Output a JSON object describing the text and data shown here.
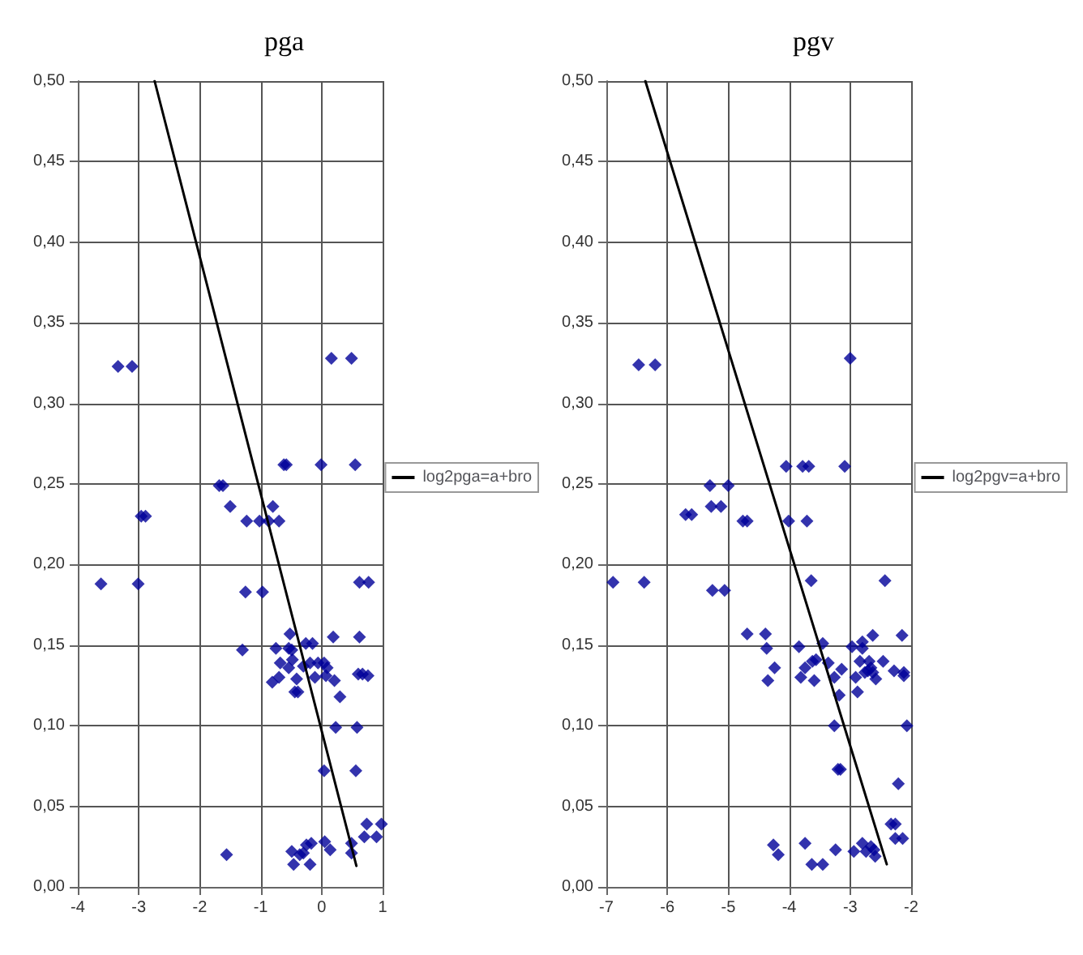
{
  "chart_data": [
    {
      "type": "scatter",
      "title": "pga",
      "legend": "right",
      "grid": true,
      "marker": "diamond",
      "xlim": [
        -4,
        1
      ],
      "xticks": [
        -4,
        -3,
        -2,
        -1,
        0,
        1
      ],
      "ylim": [
        0,
        0.5
      ],
      "yticks": [
        {
          "value": 0,
          "label": "0,00"
        },
        {
          "value": 0.05,
          "label": "0,05"
        },
        {
          "value": 0.1,
          "label": "0,10"
        },
        {
          "value": 0.15,
          "label": "0,15"
        },
        {
          "value": 0.2,
          "label": "0,20"
        },
        {
          "value": 0.25,
          "label": "0,25"
        },
        {
          "value": 0.3,
          "label": "0,30"
        },
        {
          "value": 0.35,
          "label": "0,35"
        },
        {
          "value": 0.4,
          "label": "0,40"
        },
        {
          "value": 0.45,
          "label": "0,45"
        },
        {
          "value": 0.5,
          "label": "0,50"
        }
      ],
      "series": [
        {
          "type": "scatter",
          "color": "#000099",
          "x": [
            -3.34,
            -3.11,
            0.16,
            0.49,
            -0.62,
            -0.58,
            -0.01,
            0.55,
            -1.68,
            -1.62,
            -1.5,
            -0.8,
            -1.23,
            -1.02,
            -0.87,
            -0.7,
            -2.96,
            -2.89,
            -3.62,
            -3.01,
            -1.25,
            -0.97,
            0.62,
            0.77,
            -1.3,
            -0.75,
            -0.52,
            -0.54,
            -0.49,
            -0.68,
            -0.7,
            -0.81,
            -0.54,
            -0.48,
            -0.41,
            -0.44,
            -0.39,
            -0.3,
            -0.26,
            -0.15,
            -0.19,
            -0.11,
            -0.06,
            0.04,
            0.09,
            0.07,
            0.21,
            0.3,
            0.19,
            0.62,
            0.23,
            0.58,
            0.04,
            0.56,
            0.6,
            0.67,
            0.76,
            -1.56,
            -0.49,
            -0.46,
            -0.3,
            -0.25,
            -0.17,
            -0.19,
            -0.36,
            0.05,
            0.14,
            0.49,
            0.49,
            0.7,
            0.9,
            0.74,
            0.98
          ],
          "values": [
            0.323,
            0.323,
            0.328,
            0.328,
            0.262,
            0.262,
            0.262,
            0.262,
            0.249,
            0.249,
            0.236,
            0.236,
            0.227,
            0.227,
            0.227,
            0.227,
            0.23,
            0.23,
            0.188,
            0.188,
            0.183,
            0.183,
            0.189,
            0.189,
            0.147,
            0.148,
            0.157,
            0.148,
            0.147,
            0.139,
            0.13,
            0.127,
            0.136,
            0.141,
            0.129,
            0.121,
            0.121,
            0.137,
            0.151,
            0.151,
            0.139,
            0.13,
            0.139,
            0.139,
            0.136,
            0.131,
            0.128,
            0.118,
            0.155,
            0.155,
            0.099,
            0.099,
            0.072,
            0.072,
            0.132,
            0.132,
            0.131,
            0.02,
            0.022,
            0.014,
            0.021,
            0.026,
            0.027,
            0.014,
            0.02,
            0.028,
            0.023,
            0.027,
            0.021,
            0.031,
            0.031,
            0.039,
            0.039
          ]
        },
        {
          "type": "line",
          "name": "log2pga=a+bro",
          "color": "#000000",
          "marker": "none",
          "x": [
            -2.74,
            0.57
          ],
          "values": [
            0.5,
            0.013
          ]
        }
      ]
    },
    {
      "type": "scatter",
      "title": "pgv",
      "legend": "right",
      "grid": true,
      "marker": "diamond",
      "xlim": [
        -7,
        -2
      ],
      "xticks": [
        -7,
        -6,
        -5,
        -4,
        -3,
        -2
      ],
      "ylim": [
        0,
        0.5
      ],
      "yticks": [
        {
          "value": 0,
          "label": "0,00"
        },
        {
          "value": 0.05,
          "label": "0,05"
        },
        {
          "value": 0.1,
          "label": "0,10"
        },
        {
          "value": 0.15,
          "label": "0,15"
        },
        {
          "value": 0.2,
          "label": "0,20"
        },
        {
          "value": 0.25,
          "label": "0,25"
        },
        {
          "value": 0.3,
          "label": "0,30"
        },
        {
          "value": 0.35,
          "label": "0,35"
        },
        {
          "value": 0.4,
          "label": "0,40"
        },
        {
          "value": 0.45,
          "label": "0,45"
        },
        {
          "value": 0.5,
          "label": "0,50"
        }
      ],
      "series": [
        {
          "type": "scatter",
          "color": "#000099",
          "x": [
            -6.47,
            -6.2,
            -3.0,
            -4.05,
            -3.78,
            -3.68,
            -3.09,
            -5.3,
            -5.0,
            -5.7,
            -5.6,
            -5.28,
            -5.12,
            -4.76,
            -4.69,
            -4.01,
            -3.71,
            -6.89,
            -6.38,
            -5.26,
            -5.06,
            -3.64,
            -2.43,
            -4.69,
            -4.39,
            -4.37,
            -4.24,
            -4.35,
            -3.84,
            -3.81,
            -3.74,
            -3.62,
            -3.56,
            -3.59,
            -3.45,
            -3.36,
            -3.26,
            -3.14,
            -3.18,
            -3.26,
            -3.2,
            -3.16,
            -2.97,
            -2.91,
            -2.88,
            -2.8,
            -2.8,
            -2.84,
            -2.76,
            -2.69,
            -2.66,
            -2.63,
            -2.71,
            -2.63,
            -2.58,
            -2.46,
            -2.28,
            -2.15,
            -2.12,
            -2.12,
            -2.07,
            -2.21,
            -2.33,
            -2.26,
            -2.26,
            -2.14,
            -4.26,
            -4.18,
            -3.74,
            -3.63,
            -3.45,
            -3.24,
            -2.94,
            -2.8,
            -2.74,
            -2.66,
            -2.61,
            -2.59
          ],
          "values": [
            0.324,
            0.324,
            0.328,
            0.261,
            0.261,
            0.261,
            0.261,
            0.249,
            0.249,
            0.231,
            0.231,
            0.236,
            0.236,
            0.227,
            0.227,
            0.227,
            0.227,
            0.189,
            0.189,
            0.184,
            0.184,
            0.19,
            0.19,
            0.157,
            0.157,
            0.148,
            0.136,
            0.128,
            0.149,
            0.13,
            0.136,
            0.14,
            0.141,
            0.128,
            0.151,
            0.139,
            0.13,
            0.135,
            0.119,
            0.1,
            0.073,
            0.073,
            0.149,
            0.13,
            0.121,
            0.152,
            0.148,
            0.14,
            0.133,
            0.14,
            0.136,
            0.133,
            0.134,
            0.156,
            0.129,
            0.14,
            0.134,
            0.156,
            0.133,
            0.131,
            0.1,
            0.064,
            0.039,
            0.039,
            0.03,
            0.03,
            0.026,
            0.02,
            0.027,
            0.014,
            0.014,
            0.023,
            0.022,
            0.027,
            0.022,
            0.025,
            0.023,
            0.019
          ]
        },
        {
          "type": "line",
          "name": "log2pgv=a+bro",
          "color": "#000000",
          "marker": "none",
          "x": [
            -6.36,
            -2.4
          ],
          "values": [
            0.5,
            0.014
          ]
        }
      ]
    }
  ]
}
